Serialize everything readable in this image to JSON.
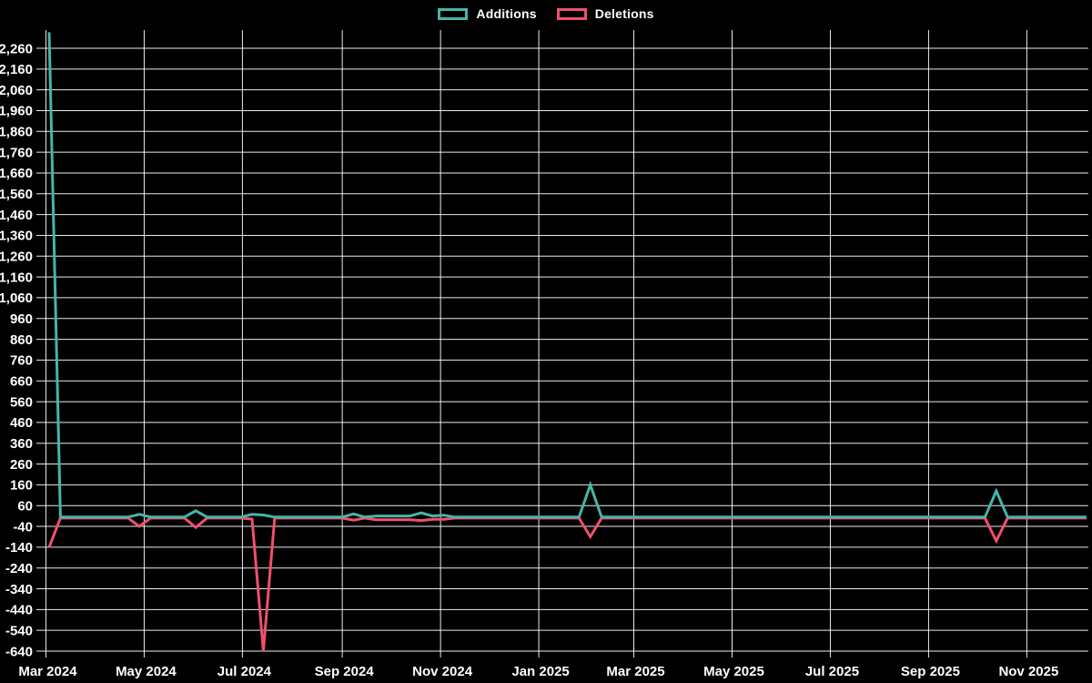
{
  "chart_data": {
    "type": "line",
    "title": "",
    "background_color": "#000000",
    "grid": {
      "visible": true,
      "color": "#ffffff"
    },
    "text_color": "#ffffff",
    "legend": {
      "position": "top-center",
      "items": [
        {
          "label": "Additions",
          "color": "#48b4aa"
        },
        {
          "label": "Deletions",
          "color": "#f0506c"
        }
      ]
    },
    "x_axis": {
      "start_date": "2024-03-03",
      "interval": "weekly",
      "total_weeks": 93,
      "ticks": [
        {
          "label": "Mar 2024",
          "day": -2
        },
        {
          "label": "May 2024",
          "day": 59
        },
        {
          "label": "Jul 2024",
          "day": 120
        },
        {
          "label": "Sep 2024",
          "day": 182
        },
        {
          "label": "Nov 2024",
          "day": 243
        },
        {
          "label": "Jan 2025",
          "day": 304
        },
        {
          "label": "Mar 2025",
          "day": 363
        },
        {
          "label": "May 2025",
          "day": 424
        },
        {
          "label": "Jul 2025",
          "day": 485
        },
        {
          "label": "Sep 2025",
          "day": 546
        },
        {
          "label": "Nov 2025",
          "day": 607
        }
      ]
    },
    "y_axis": {
      "min": -640,
      "max": 2260,
      "step": 100,
      "format": "thousands-comma"
    },
    "series": [
      {
        "key": "additions",
        "name": "Additions",
        "color": "#48b4aa"
      },
      {
        "key": "deletions",
        "name": "Deletions",
        "color": "#f0506c"
      }
    ],
    "baseline": {
      "additions": 5,
      "deletions": 0
    },
    "points": [
      {
        "week": 0,
        "date": "2024-03-03",
        "additions": 2337,
        "deletions": -140
      },
      {
        "week": 8,
        "date": "2024-04-28",
        "additions": 18,
        "deletions": -40
      },
      {
        "week": 13,
        "date": "2024-06-02",
        "additions": 35,
        "deletions": -45
      },
      {
        "week": 18,
        "date": "2024-07-07",
        "additions": 18,
        "deletions": -5
      },
      {
        "week": 19,
        "date": "2024-07-14",
        "additions": 15,
        "deletions": -640
      },
      {
        "week": 27,
        "date": "2024-09-08",
        "additions": 20,
        "deletions": -10
      },
      {
        "week": 29,
        "date": "2024-09-22",
        "additions": 10,
        "deletions": -8
      },
      {
        "week": 30,
        "date": "2024-09-29",
        "additions": 10,
        "deletions": -8
      },
      {
        "week": 31,
        "date": "2024-10-06",
        "additions": 10,
        "deletions": -8
      },
      {
        "week": 32,
        "date": "2024-10-13",
        "additions": 10,
        "deletions": -8
      },
      {
        "week": 33,
        "date": "2024-10-20",
        "additions": 25,
        "deletions": -12
      },
      {
        "week": 34,
        "date": "2024-10-27",
        "additions": 10,
        "deletions": -6
      },
      {
        "week": 35,
        "date": "2024-11-03",
        "additions": 14,
        "deletions": -6
      },
      {
        "week": 48,
        "date": "2025-02-02",
        "additions": 160,
        "deletions": -90
      },
      {
        "week": 84,
        "date": "2025-10-12",
        "additions": 130,
        "deletions": -110
      }
    ]
  }
}
